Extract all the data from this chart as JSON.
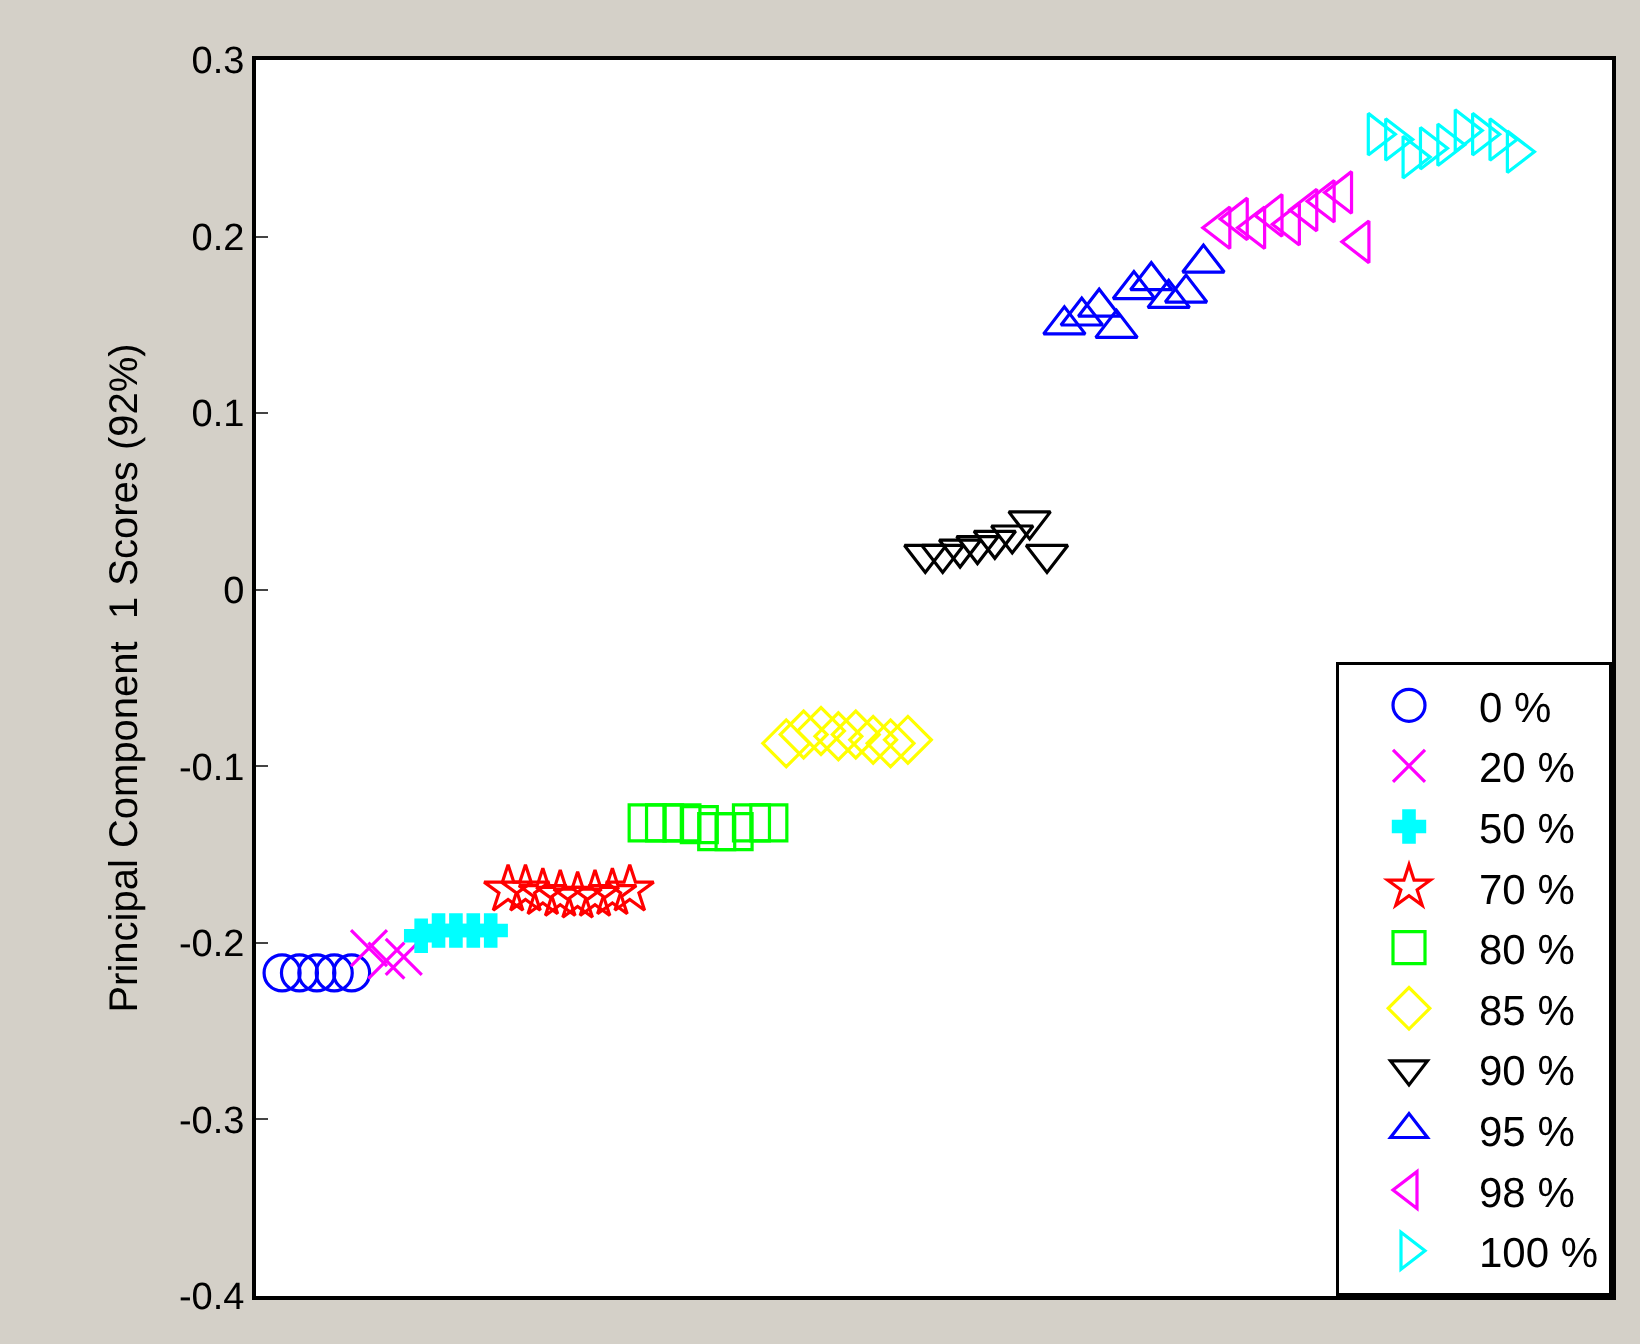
{
  "chart_data": {
    "type": "scatter",
    "ylabel": "Principal Component  1 Scores (92%)",
    "categories": [
      null,
      null,
      null,
      null,
      null,
      null,
      null,
      null,
      null,
      null,
      null,
      null,
      null,
      null,
      null,
      null,
      null,
      null,
      null,
      null,
      null,
      null,
      null,
      null,
      null,
      null,
      null,
      null,
      null,
      null,
      null,
      null,
      null,
      null,
      null,
      null,
      null,
      null,
      null,
      null,
      null,
      null,
      null,
      null,
      null,
      null,
      null,
      null,
      null,
      null,
      null,
      null,
      null,
      null,
      null,
      null,
      null,
      null,
      null,
      null,
      null,
      null,
      null,
      null,
      null,
      null,
      null,
      null,
      null,
      null,
      null,
      null,
      null,
      null,
      null,
      null,
      null,
      null
    ],
    "ylim": [
      -0.4,
      0.3
    ],
    "yticks": [
      -0.4,
      -0.3,
      -0.2,
      -0.1,
      0,
      0.1,
      0.2,
      0.3
    ],
    "legend": "bottom right",
    "tick_labels": "y",
    "series": [
      {
        "name": "0 %",
        "color": "#0000ff",
        "marker": "circle",
        "values": [
          null,
          -0.217,
          -0.217,
          -0.217,
          -0.217,
          -0.217,
          null,
          null,
          null,
          null,
          null,
          null,
          null,
          null,
          null,
          null,
          null,
          null,
          null,
          null,
          null,
          null,
          null,
          null,
          null,
          null,
          null,
          null,
          null,
          null,
          null,
          null,
          null,
          null,
          null,
          null,
          null,
          null,
          null,
          null,
          null,
          null,
          null,
          null,
          null,
          null,
          null,
          null,
          null,
          null,
          null,
          null,
          null,
          null,
          null,
          null,
          null,
          null,
          null,
          null,
          null,
          null,
          null,
          null,
          null,
          null,
          null,
          null,
          null,
          null,
          null,
          null,
          null,
          null,
          null,
          null,
          null,
          null
        ]
      },
      {
        "name": "20 %",
        "color": "#ff00ff",
        "marker": "x",
        "values": [
          null,
          null,
          null,
          null,
          null,
          null,
          -0.203,
          -0.21,
          -0.208,
          null,
          null,
          null,
          null,
          null,
          null,
          null,
          null,
          null,
          null,
          null,
          null,
          null,
          null,
          null,
          null,
          null,
          null,
          null,
          null,
          null,
          null,
          null,
          null,
          null,
          null,
          null,
          null,
          null,
          null,
          null,
          null,
          null,
          null,
          null,
          null,
          null,
          null,
          null,
          null,
          null,
          null,
          null,
          null,
          null,
          null,
          null,
          null,
          null,
          null,
          null,
          null,
          null,
          null,
          null,
          null,
          null,
          null,
          null,
          null,
          null,
          null,
          null,
          null,
          null,
          null,
          null,
          null,
          null
        ]
      },
      {
        "name": "50 %",
        "color": "#00ffff",
        "marker": "cross",
        "values": [
          null,
          null,
          null,
          null,
          null,
          null,
          null,
          null,
          null,
          -0.196,
          -0.193,
          -0.193,
          -0.193,
          -0.193,
          null,
          null,
          null,
          null,
          null,
          null,
          null,
          null,
          null,
          null,
          null,
          null,
          null,
          null,
          null,
          null,
          null,
          null,
          null,
          null,
          null,
          null,
          null,
          null,
          null,
          null,
          null,
          null,
          null,
          null,
          null,
          null,
          null,
          null,
          null,
          null,
          null,
          null,
          null,
          null,
          null,
          null,
          null,
          null,
          null,
          null,
          null,
          null,
          null,
          null,
          null,
          null,
          null,
          null,
          null,
          null,
          null,
          null,
          null,
          null,
          null,
          null,
          null,
          null
        ]
      },
      {
        "name": "70 %",
        "color": "#ff0000",
        "marker": "star",
        "values": [
          null,
          null,
          null,
          null,
          null,
          null,
          null,
          null,
          null,
          null,
          null,
          null,
          null,
          null,
          -0.17,
          -0.17,
          -0.172,
          -0.173,
          -0.174,
          -0.173,
          -0.172,
          -0.17,
          null,
          null,
          null,
          null,
          null,
          null,
          null,
          null,
          null,
          null,
          null,
          null,
          null,
          null,
          null,
          null,
          null,
          null,
          null,
          null,
          null,
          null,
          null,
          null,
          null,
          null,
          null,
          null,
          null,
          null,
          null,
          null,
          null,
          null,
          null,
          null,
          null,
          null,
          null,
          null,
          null,
          null,
          null,
          null,
          null,
          null,
          null,
          null,
          null,
          null,
          null,
          null,
          null,
          null,
          null,
          null
        ]
      },
      {
        "name": "80 %",
        "color": "#00ff00",
        "marker": "square",
        "values": [
          null,
          null,
          null,
          null,
          null,
          null,
          null,
          null,
          null,
          null,
          null,
          null,
          null,
          null,
          null,
          null,
          null,
          null,
          null,
          null,
          null,
          null,
          -0.132,
          -0.132,
          -0.132,
          -0.133,
          -0.137,
          -0.137,
          -0.132,
          -0.132,
          null,
          null,
          null,
          null,
          null,
          null,
          null,
          null,
          null,
          null,
          null,
          null,
          null,
          null,
          null,
          null,
          null,
          null,
          null,
          null,
          null,
          null,
          null,
          null,
          null,
          null,
          null,
          null,
          null,
          null,
          null,
          null,
          null,
          null,
          null,
          null,
          null,
          null,
          null,
          null,
          null,
          null,
          null,
          null,
          null,
          null,
          null,
          null
        ]
      },
      {
        "name": "85 %",
        "color": "#ffff00",
        "marker": "diamond",
        "values": [
          null,
          null,
          null,
          null,
          null,
          null,
          null,
          null,
          null,
          null,
          null,
          null,
          null,
          null,
          null,
          null,
          null,
          null,
          null,
          null,
          null,
          null,
          null,
          null,
          null,
          null,
          null,
          null,
          null,
          null,
          -0.087,
          -0.082,
          -0.08,
          -0.083,
          -0.082,
          -0.085,
          -0.087,
          -0.085,
          null,
          null,
          null,
          null,
          null,
          null,
          null,
          null,
          null,
          null,
          null,
          null,
          null,
          null,
          null,
          null,
          null,
          null,
          null,
          null,
          null,
          null,
          null,
          null,
          null,
          null,
          null,
          null,
          null,
          null,
          null,
          null,
          null,
          null,
          null,
          null,
          null,
          null,
          null,
          null
        ]
      },
      {
        "name": "90 %",
        "color": "#000000",
        "marker": "triangle-down",
        "values": [
          null,
          null,
          null,
          null,
          null,
          null,
          null,
          null,
          null,
          null,
          null,
          null,
          null,
          null,
          null,
          null,
          null,
          null,
          null,
          null,
          null,
          null,
          null,
          null,
          null,
          null,
          null,
          null,
          null,
          null,
          null,
          null,
          null,
          null,
          null,
          null,
          null,
          null,
          0.02,
          0.02,
          0.023,
          0.025,
          0.028,
          0.031,
          0.039,
          0.02,
          null,
          null,
          null,
          null,
          null,
          null,
          null,
          null,
          null,
          null,
          null,
          null,
          null,
          null,
          null,
          null,
          null,
          null,
          null,
          null,
          null,
          null,
          null,
          null,
          null,
          null,
          null,
          null,
          null,
          null,
          null,
          null
        ]
      },
      {
        "name": "95 %",
        "color": "#0000ff",
        "marker": "triangle-up",
        "values": [
          null,
          null,
          null,
          null,
          null,
          null,
          null,
          null,
          null,
          null,
          null,
          null,
          null,
          null,
          null,
          null,
          null,
          null,
          null,
          null,
          null,
          null,
          null,
          null,
          null,
          null,
          null,
          null,
          null,
          null,
          null,
          null,
          null,
          null,
          null,
          null,
          null,
          null,
          null,
          null,
          null,
          null,
          null,
          null,
          null,
          null,
          0.15,
          0.155,
          0.16,
          0.148,
          0.17,
          0.175,
          0.165,
          0.168,
          0.185,
          null,
          null,
          null,
          null,
          null,
          null,
          null,
          null,
          null,
          null,
          null,
          null,
          null,
          null,
          null,
          null,
          null,
          null,
          null,
          null,
          null,
          null,
          null
        ]
      },
      {
        "name": "98 %",
        "color": "#ff00ff",
        "marker": "triangle-left",
        "values": [
          null,
          null,
          null,
          null,
          null,
          null,
          null,
          null,
          null,
          null,
          null,
          null,
          null,
          null,
          null,
          null,
          null,
          null,
          null,
          null,
          null,
          null,
          null,
          null,
          null,
          null,
          null,
          null,
          null,
          null,
          null,
          null,
          null,
          null,
          null,
          null,
          null,
          null,
          null,
          null,
          null,
          null,
          null,
          null,
          null,
          null,
          null,
          null,
          null,
          null,
          null,
          null,
          null,
          null,
          null,
          0.205,
          0.21,
          0.205,
          0.212,
          0.207,
          0.215,
          0.22,
          0.225,
          0.197,
          null,
          null,
          null,
          null,
          null,
          null,
          null,
          null,
          null,
          null,
          null,
          null,
          null,
          null
        ]
      },
      {
        "name": "100 %",
        "color": "#00ffff",
        "marker": "triangle-right",
        "values": [
          null,
          null,
          null,
          null,
          null,
          null,
          null,
          null,
          null,
          null,
          null,
          null,
          null,
          null,
          null,
          null,
          null,
          null,
          null,
          null,
          null,
          null,
          null,
          null,
          null,
          null,
          null,
          null,
          null,
          null,
          null,
          null,
          null,
          null,
          null,
          null,
          null,
          null,
          null,
          null,
          null,
          null,
          null,
          null,
          null,
          null,
          null,
          null,
          null,
          null,
          null,
          null,
          null,
          null,
          null,
          null,
          null,
          null,
          null,
          null,
          null,
          null,
          null,
          null,
          0.258,
          0.255,
          0.245,
          0.25,
          0.252,
          0.26,
          0.258,
          0.255,
          0.248,
          null,
          null,
          null,
          null,
          null
        ]
      }
    ]
  }
}
